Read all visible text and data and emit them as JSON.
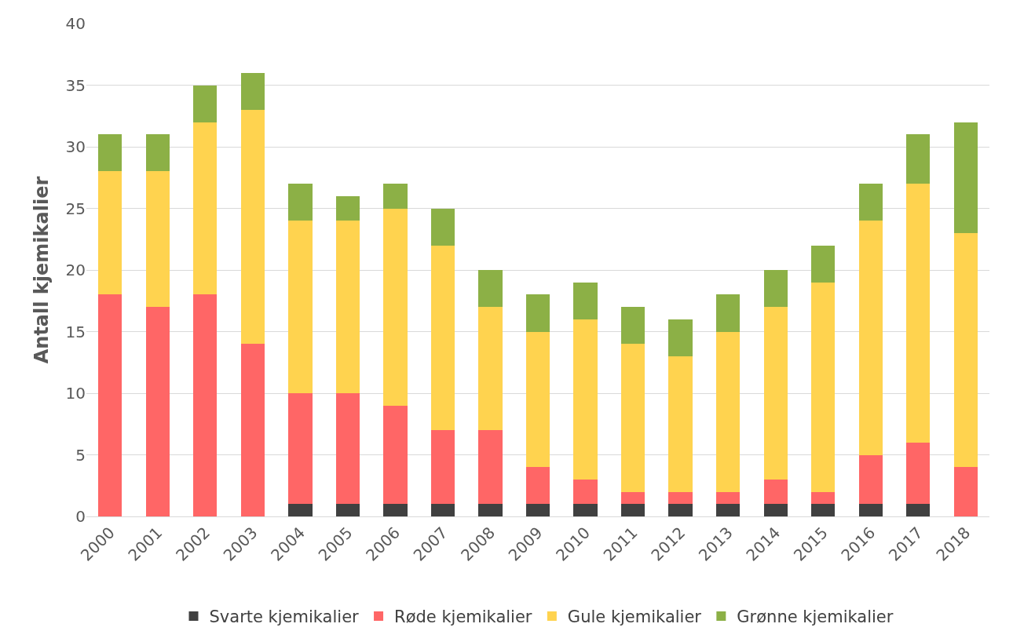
{
  "chart_data": {
    "type": "bar",
    "stacked": true,
    "ylabel": "Antall kjemikalier",
    "categories": [
      "2000",
      "2001",
      "2002",
      "2003",
      "2004",
      "2005",
      "2006",
      "2007",
      "2008",
      "2009",
      "2010",
      "2011",
      "2012",
      "2013",
      "2014",
      "2015",
      "2016",
      "2017",
      "2018"
    ],
    "series": [
      {
        "name": "Svarte kjemikalier",
        "color": "#404040",
        "values": [
          0,
          0,
          0,
          0,
          1,
          1,
          1,
          1,
          1,
          1,
          1,
          1,
          1,
          1,
          1,
          1,
          1,
          1,
          0
        ]
      },
      {
        "name": "Røde kjemikalier",
        "color": "#ff6666",
        "values": [
          18,
          17,
          18,
          14,
          9,
          9,
          8,
          6,
          6,
          3,
          2,
          1,
          1,
          1,
          2,
          1,
          4,
          5,
          4
        ]
      },
      {
        "name": "Gule kjemikalier",
        "color": "#ffd34f",
        "values": [
          10,
          11,
          14,
          19,
          14,
          14,
          16,
          15,
          10,
          11,
          13,
          12,
          11,
          13,
          14,
          17,
          19,
          21,
          19
        ]
      },
      {
        "name": "Grønne kjemikalier",
        "color": "#8cb046",
        "values": [
          3,
          3,
          3,
          3,
          3,
          2,
          2,
          3,
          3,
          3,
          3,
          3,
          3,
          3,
          3,
          3,
          3,
          4,
          9
        ]
      }
    ],
    "ylim": [
      0,
      40
    ],
    "yticks": [
      0,
      5,
      10,
      15,
      20,
      25,
      30,
      35,
      40
    ],
    "grid": "y",
    "legend": "bottom"
  }
}
